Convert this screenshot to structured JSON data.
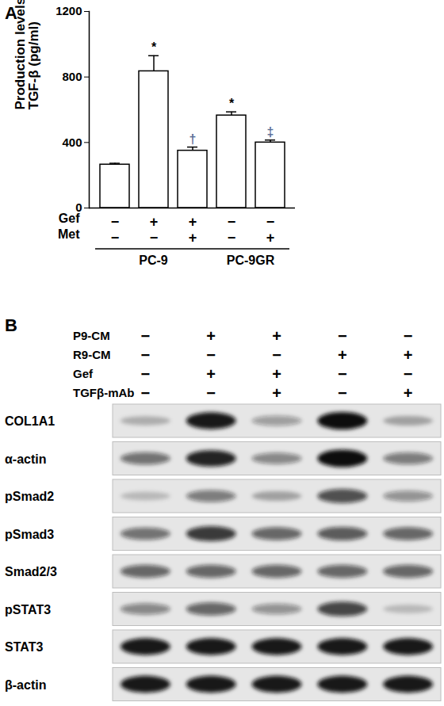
{
  "chart_data": {
    "type": "bar",
    "title": "A",
    "ylabel": "Production levels of TGF-β (pg/ml)",
    "categories": [
      null,
      null,
      null,
      null,
      null
    ],
    "values": [
      265,
      835,
      350,
      565,
      400
    ],
    "errors": [
      8,
      95,
      22,
      22,
      15
    ],
    "color": "#ffffff",
    "ylim": [
      0,
      1200
    ],
    "yticks": [
      0,
      400,
      800,
      1200
    ],
    "grid": false,
    "annotations": [
      null,
      "*",
      "†",
      "*",
      "‡"
    ],
    "annotation_colors": [
      null,
      "#000000",
      "#5a6e96",
      "#000000",
      "#5a6e96"
    ],
    "conditions": [
      {
        "name": "Gef",
        "values": [
          "−",
          "+",
          "+",
          "−",
          "−"
        ]
      },
      {
        "name": "Met",
        "values": [
          "−",
          "−",
          "+",
          "−",
          "+"
        ]
      }
    ],
    "groups": [
      {
        "name": "PC-9",
        "count": 3
      },
      {
        "name": "PC-9GR",
        "count": 2
      }
    ]
  },
  "blot": {
    "title": "B",
    "conditions": [
      {
        "name": "P9-CM",
        "values": [
          "−",
          "+",
          "+",
          "−",
          "−"
        ]
      },
      {
        "name": "R9-CM",
        "values": [
          "−",
          "−",
          "−",
          "+",
          "+"
        ]
      },
      {
        "name": "Gef",
        "values": [
          "−",
          "+",
          "+",
          "−",
          "−"
        ]
      },
      {
        "name": "TGFβ-mAb",
        "values": [
          "−",
          "−",
          "+",
          "−",
          "+"
        ]
      }
    ],
    "rows": [
      {
        "name": "COL1A1",
        "levels": [
          0.25,
          0.95,
          0.35,
          1.0,
          0.3
        ]
      },
      {
        "name": "α-actin",
        "levels": [
          0.55,
          0.9,
          0.45,
          1.0,
          0.5
        ]
      },
      {
        "name": "pSmad2",
        "levels": [
          0.2,
          0.5,
          0.3,
          0.7,
          0.4
        ]
      },
      {
        "name": "pSmad3",
        "levels": [
          0.55,
          0.8,
          0.6,
          0.65,
          0.6
        ]
      },
      {
        "name": "Smad2/3",
        "levels": [
          0.6,
          0.6,
          0.6,
          0.6,
          0.6
        ]
      },
      {
        "name": "pSTAT3",
        "levels": [
          0.45,
          0.6,
          0.4,
          0.75,
          0.2
        ]
      },
      {
        "name": "STAT3",
        "levels": [
          0.95,
          0.95,
          0.95,
          0.95,
          0.95
        ]
      },
      {
        "name": "β-actin",
        "levels": [
          0.95,
          0.95,
          0.95,
          0.95,
          0.95
        ]
      }
    ]
  }
}
